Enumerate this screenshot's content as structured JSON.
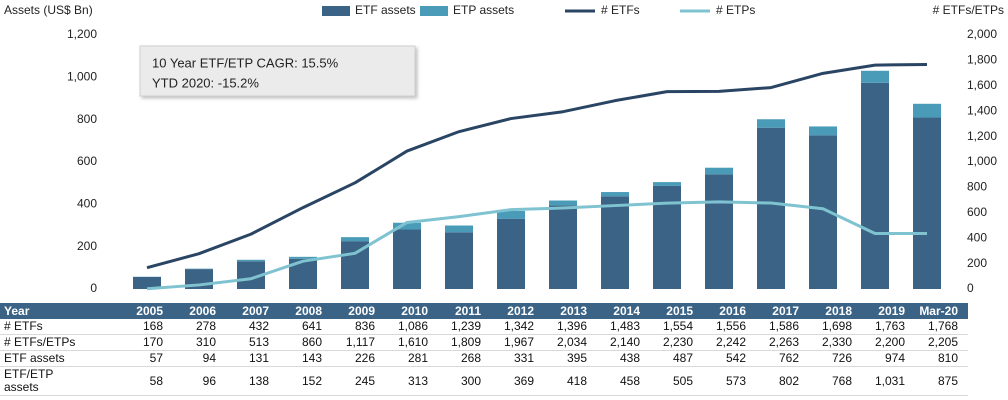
{
  "chart_data": {
    "type": "bar",
    "stacked": true,
    "y_label": "Assets (US$ Bn)",
    "y2_label": "# ETFs/ETPs",
    "annotations": [
      "10 Year ETF/ETP CAGR: 15.5%",
      "YTD 2020: -15.2%"
    ],
    "categories": [
      "2005",
      "2006",
      "2007",
      "2008",
      "2009",
      "2010",
      "2011",
      "2012",
      "2013",
      "2014",
      "2015",
      "2016",
      "2017",
      "2018",
      "2019",
      "Mar-20"
    ],
    "series": [
      {
        "name": "ETF assets",
        "type": "bar",
        "color": "#3b6386",
        "values": [
          57,
          94,
          131,
          143,
          226,
          281,
          268,
          331,
          395,
          438,
          487,
          542,
          762,
          726,
          974,
          810
        ]
      },
      {
        "name": "ETP assets",
        "type": "bar",
        "color": "#4a9bb8",
        "values": [
          1,
          2,
          7,
          9,
          19,
          32,
          32,
          38,
          23,
          20,
          18,
          31,
          40,
          42,
          57,
          65
        ]
      },
      {
        "name": "# ETFs",
        "type": "line",
        "axis": "y2",
        "color": "#2a4563",
        "values": [
          168,
          278,
          432,
          641,
          836,
          1086,
          1239,
          1342,
          1396,
          1483,
          1554,
          1556,
          1586,
          1698,
          1763,
          1768
        ]
      },
      {
        "name": "# ETPs",
        "type": "line",
        "axis": "y2",
        "color": "#7fc3d1",
        "values": [
          2,
          32,
          81,
          219,
          281,
          524,
          570,
          625,
          638,
          657,
          676,
          686,
          677,
          632,
          437,
          437
        ]
      }
    ],
    "ylim": [
      0,
      1200
    ],
    "yticks": [
      0,
      200,
      400,
      600,
      800,
      {
        "value": 1000,
        "label": "1,000"
      },
      {
        "value": 1200,
        "label": "1,200"
      }
    ],
    "y2lim": [
      0,
      2000
    ],
    "y2ticks": [
      0,
      200,
      400,
      600,
      800,
      {
        "value": 1000,
        "label": "1,000"
      },
      {
        "value": 1200,
        "label": "1,200"
      },
      {
        "value": 1400,
        "label": "1,400"
      },
      {
        "value": 1600,
        "label": "1,600"
      },
      {
        "value": 1800,
        "label": "1,800"
      },
      {
        "value": 2000,
        "label": "2,000"
      }
    ],
    "grid": false,
    "table": {
      "header_label": "Year",
      "rows": [
        {
          "label": "# ETFs",
          "cells": [
            "168",
            "278",
            "432",
            "641",
            "836",
            "1,086",
            "1,239",
            "1,342",
            "1,396",
            "1,483",
            "1,554",
            "1,556",
            "1,586",
            "1,698",
            "1,763",
            "1,768"
          ]
        },
        {
          "label": "# ETFs/ETPs",
          "cells": [
            "170",
            "310",
            "513",
            "860",
            "1,117",
            "1,610",
            "1,809",
            "1,967",
            "2,034",
            "2,140",
            "2,230",
            "2,242",
            "2,263",
            "2,330",
            "2,200",
            "2,205"
          ]
        },
        {
          "label": "ETF assets",
          "cells": [
            "57",
            "94",
            "131",
            "143",
            "226",
            "281",
            "268",
            "331",
            "395",
            "438",
            "487",
            "542",
            "762",
            "726",
            "974",
            "810"
          ]
        },
        {
          "label": "ETF/ETP assets",
          "cells": [
            "58",
            "96",
            "138",
            "152",
            "245",
            "313",
            "300",
            "369",
            "418",
            "458",
            "505",
            "573",
            "802",
            "768",
            "1,031",
            "875"
          ]
        }
      ]
    }
  }
}
